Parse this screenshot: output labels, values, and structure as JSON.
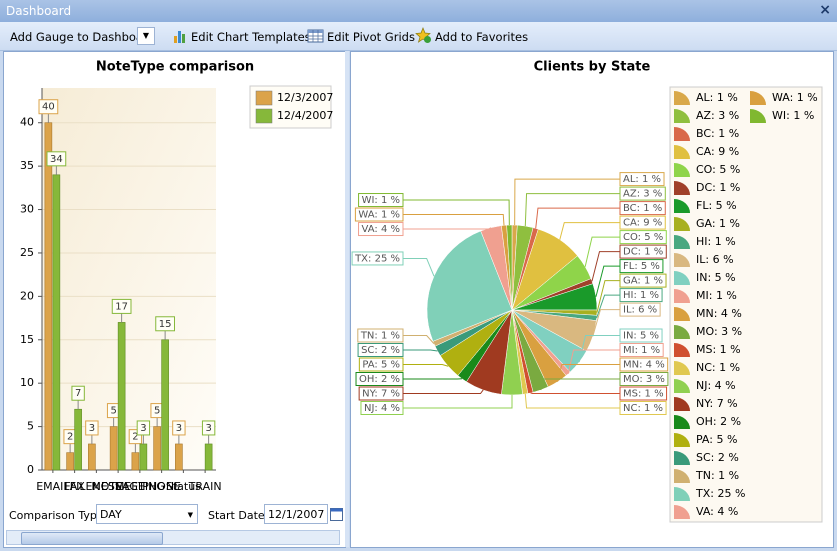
{
  "window": {
    "title": "Dashboard",
    "close": "×"
  },
  "toolbar": {
    "items": [
      "Add Gauge to Dashboard",
      "Edit Chart Templates",
      "Edit Pivot Grids",
      "Add to Favorites"
    ]
  },
  "chart_data": [
    {
      "type": "bar",
      "title": "NoteType comparison",
      "categories": [
        "EMAIL",
        "FAX",
        "FILENOTE",
        "MESSAGE",
        "MEETING",
        "PHONE",
        "Status",
        "TRAIN"
      ],
      "series": [
        {
          "name": "12/3/2007",
          "color": "#dba34a",
          "values": [
            40,
            2,
            3,
            5,
            2,
            5,
            3,
            null
          ]
        },
        {
          "name": "12/4/2007",
          "color": "#86b83a",
          "values": [
            34,
            7,
            null,
            17,
            3,
            15,
            null,
            3
          ]
        }
      ],
      "ylim": [
        0,
        44
      ],
      "yticks": [
        0,
        5,
        10,
        15,
        20,
        25,
        30,
        35,
        40
      ],
      "grid": true,
      "legend": "top-right"
    },
    {
      "type": "pie",
      "title": "Clients by State",
      "categories": [
        "AL",
        "AZ",
        "BC",
        "CA",
        "CO",
        "DC",
        "FL",
        "GA",
        "HI",
        "IL",
        "IN",
        "MI",
        "MN",
        "MO",
        "MS",
        "NC",
        "NJ",
        "NY",
        "OH",
        "PA",
        "SC",
        "TN",
        "TX",
        "VA",
        "WA",
        "WI"
      ],
      "values": [
        1,
        3,
        1,
        9,
        5,
        1,
        5,
        1,
        1,
        6,
        5,
        1,
        4,
        3,
        1,
        1,
        4,
        7,
        2,
        5,
        2,
        1,
        25,
        4,
        1,
        1
      ],
      "value_labels": [
        "AL: 1 %",
        "AZ: 3 %",
        "BC: 1 %",
        "CA: 9 %",
        "CO: 5 %",
        "DC: 1 %",
        "FL: 5 %",
        "GA: 1 %",
        "HI: 1 %",
        "IL: 6 %",
        "IN: 5 %",
        "MI: 1 %",
        "MN: 4 %",
        "MO: 3 %",
        "MS: 1 %",
        "NC: 1 %",
        "NJ: 4 %",
        "NY: 7 %",
        "OH: 2 %",
        "PA: 5 %",
        "SC: 2 %",
        "TN: 1 %",
        "TX: 25 %",
        "VA: 4 %",
        "WA: 1 %",
        "WI: 1 %"
      ],
      "colors": [
        "#d9a84a",
        "#8fbf3f",
        "#d9694a",
        "#e0c040",
        "#8fd44a",
        "#a0402a",
        "#1a9a2a",
        "#a8b020",
        "#4aa880",
        "#d9b880",
        "#80d0c0",
        "#f0a090",
        "#d9a040",
        "#7aaa40",
        "#d05030",
        "#e0c850",
        "#90d050",
        "#a03a20",
        "#1a8a1a",
        "#b0b010",
        "#3a9a7a",
        "#d0b070",
        "#80d0b8",
        "#f0a090",
        "#d9a040",
        "#80b830"
      ],
      "legend": "right"
    }
  ],
  "controls": {
    "comparison_type_label": "Comparison Type",
    "comparison_type": "DAY",
    "start_date_label": "Start Date",
    "start_date": "12/1/2007"
  }
}
